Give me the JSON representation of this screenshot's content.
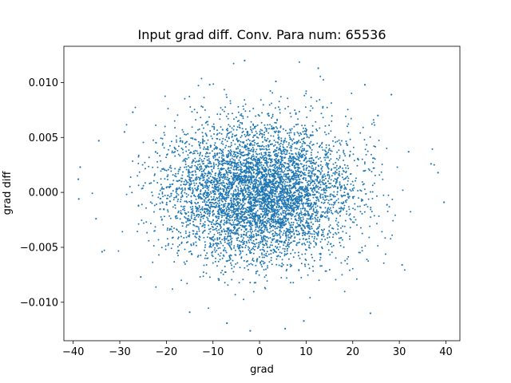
{
  "chart_data": {
    "type": "scatter",
    "title": "Input grad diff. Conv. Para num: 65536",
    "xlabel": "grad",
    "ylabel": "grad diff",
    "xlim": [
      -42.0,
      43.0
    ],
    "ylim": [
      -0.0135,
      0.0133
    ],
    "xticks": [
      -40,
      -30,
      -20,
      -10,
      0,
      10,
      20,
      30,
      40
    ],
    "xtick_labels": [
      "−40",
      "−30",
      "−20",
      "−10",
      "0",
      "10",
      "20",
      "30",
      "40"
    ],
    "yticks": [
      -0.01,
      -0.005,
      0.0,
      0.005,
      0.01
    ],
    "ytick_labels": [
      "−0.010",
      "−0.005",
      "0.000",
      "0.005",
      "0.010"
    ],
    "grid": false,
    "color": "#1f77b4",
    "point_count": 65536,
    "distribution": {
      "x_mean": 0.0,
      "x_std": 9.8,
      "y_mean": 0.0,
      "y_std": 0.0031
    },
    "outliers": [
      {
        "x": -38.5,
        "y": 0.0023
      },
      {
        "x": -38.9,
        "y": 0.0012
      },
      {
        "x": -38.8,
        "y": -0.0006
      },
      {
        "x": 39.6,
        "y": -0.0009
      },
      {
        "x": 38.3,
        "y": 0.0018
      },
      {
        "x": 36.8,
        "y": 0.0026
      },
      {
        "x": -35.1,
        "y": -0.0024
      },
      {
        "x": -33.8,
        "y": -0.0054
      },
      {
        "x": -34.5,
        "y": 0.0047
      },
      {
        "x": 32.0,
        "y": 0.0037
      },
      {
        "x": 30.6,
        "y": -0.0066
      },
      {
        "x": 28.3,
        "y": 0.0089
      },
      {
        "x": -29.0,
        "y": 0.0055
      },
      {
        "x": -27.2,
        "y": 0.0073
      },
      {
        "x": 3.5,
        "y": 0.0101
      },
      {
        "x": -3.2,
        "y": 0.012
      },
      {
        "x": 5.5,
        "y": -0.0124
      },
      {
        "x": -2.0,
        "y": -0.0126
      },
      {
        "x": 12.6,
        "y": 0.0113
      },
      {
        "x": -10.7,
        "y": 0.0098
      },
      {
        "x": 22.6,
        "y": 0.0098
      },
      {
        "x": 23.8,
        "y": -0.011
      },
      {
        "x": 9.5,
        "y": -0.0117
      },
      {
        "x": -7.0,
        "y": -0.0119
      },
      {
        "x": -15.0,
        "y": -0.0109
      },
      {
        "x": -25.5,
        "y": -0.0077
      },
      {
        "x": 25.4,
        "y": 0.007
      }
    ]
  }
}
